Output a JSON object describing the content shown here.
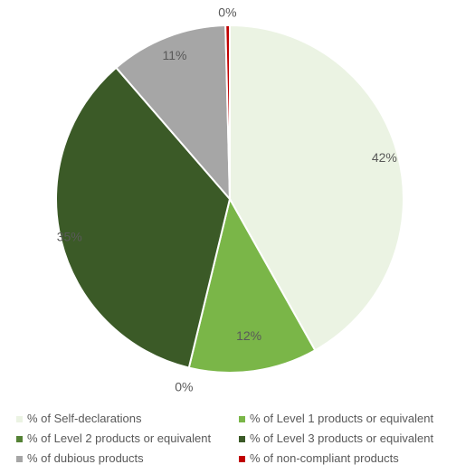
{
  "chart_data": {
    "type": "pie",
    "slices": [
      {
        "label": "% of Self-declarations",
        "value": 42,
        "display": "42%",
        "color": "#ebf3e3"
      },
      {
        "label": "% of Level 1 products or equivalent",
        "value": 12,
        "display": "12%",
        "color": "#7ab648"
      },
      {
        "label": "% of Level 2 products or equivalent",
        "value": 0,
        "display": "0%",
        "color": "#548235"
      },
      {
        "label": "% of Level 3 products or equivalent",
        "value": 35,
        "display": "35%",
        "color": "#3b5a27"
      },
      {
        "label": "% of dubious products",
        "value": 11,
        "display": "11%",
        "color": "#a6a6a6"
      },
      {
        "label": "% of non-compliant products",
        "value": 0.4,
        "display": "0%",
        "color": "#c00000"
      }
    ],
    "legend_position": "bottom",
    "start_angle": "top, clockwise"
  }
}
